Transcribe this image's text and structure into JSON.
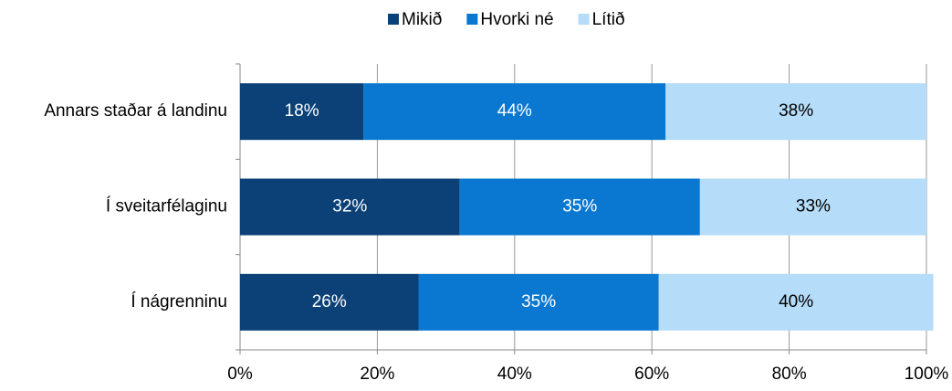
{
  "chart_data": {
    "type": "stacked_bar_horizontal",
    "categories": [
      "Annars staðar á landinu",
      "Í sveitarfélaginu",
      "Í nágrenninu"
    ],
    "series": [
      {
        "name": "Mikið",
        "color": "#0b4177",
        "values": [
          18,
          32,
          26
        ],
        "value_labels": [
          "18%",
          "32%",
          "26%"
        ]
      },
      {
        "name": "Hvorki né",
        "color": "#0a78d0",
        "values": [
          44,
          35,
          35
        ],
        "value_labels": [
          "44%",
          "35%",
          "35%"
        ]
      },
      {
        "name": "Lítið",
        "color": "#b5dcf8",
        "values": [
          38,
          33,
          40
        ],
        "value_labels": [
          "38%",
          "33%",
          "40%"
        ]
      }
    ],
    "xlim": [
      0,
      100
    ],
    "xticks": [
      {
        "value": 0,
        "label": "0%"
      },
      {
        "value": 20,
        "label": "20%"
      },
      {
        "value": 40,
        "label": "40%"
      },
      {
        "value": 60,
        "label": "60%"
      },
      {
        "value": 80,
        "label": "80%"
      },
      {
        "value": 100,
        "label": "100%"
      }
    ],
    "grid": true,
    "legend": "top"
  }
}
